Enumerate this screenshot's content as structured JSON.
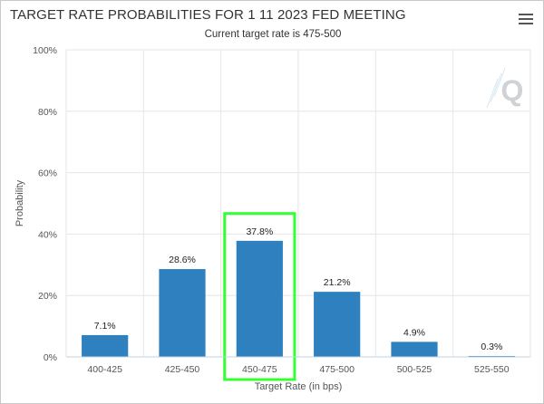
{
  "title": "TARGET RATE PROBABILITIES FOR 1 11 2023 FED MEETING",
  "subtitle": "Current target rate is 475-500",
  "menu_icon": "hamburger-menu-icon",
  "watermark": "Q",
  "colors": {
    "bar": "#2f80bf",
    "highlight": "#33ff33",
    "grid": "#e6e6e6"
  },
  "chart_data": {
    "type": "bar",
    "categories": [
      "400-425",
      "425-450",
      "450-475",
      "475-500",
      "500-525",
      "525-550"
    ],
    "values": [
      7.1,
      28.6,
      37.8,
      21.2,
      4.9,
      0.3
    ],
    "value_labels": [
      "7.1%",
      "28.6%",
      "37.8%",
      "21.2%",
      "4.9%",
      "0.3%"
    ],
    "yticks": [
      "0%",
      "20%",
      "40%",
      "60%",
      "80%",
      "100%"
    ],
    "ytick_values": [
      0,
      20,
      40,
      60,
      80,
      100
    ],
    "xlabel": "Target Rate (in bps)",
    "ylabel": "Probability",
    "ylim": [
      0,
      100
    ],
    "grid": true,
    "highlighted_category": "450-475"
  }
}
